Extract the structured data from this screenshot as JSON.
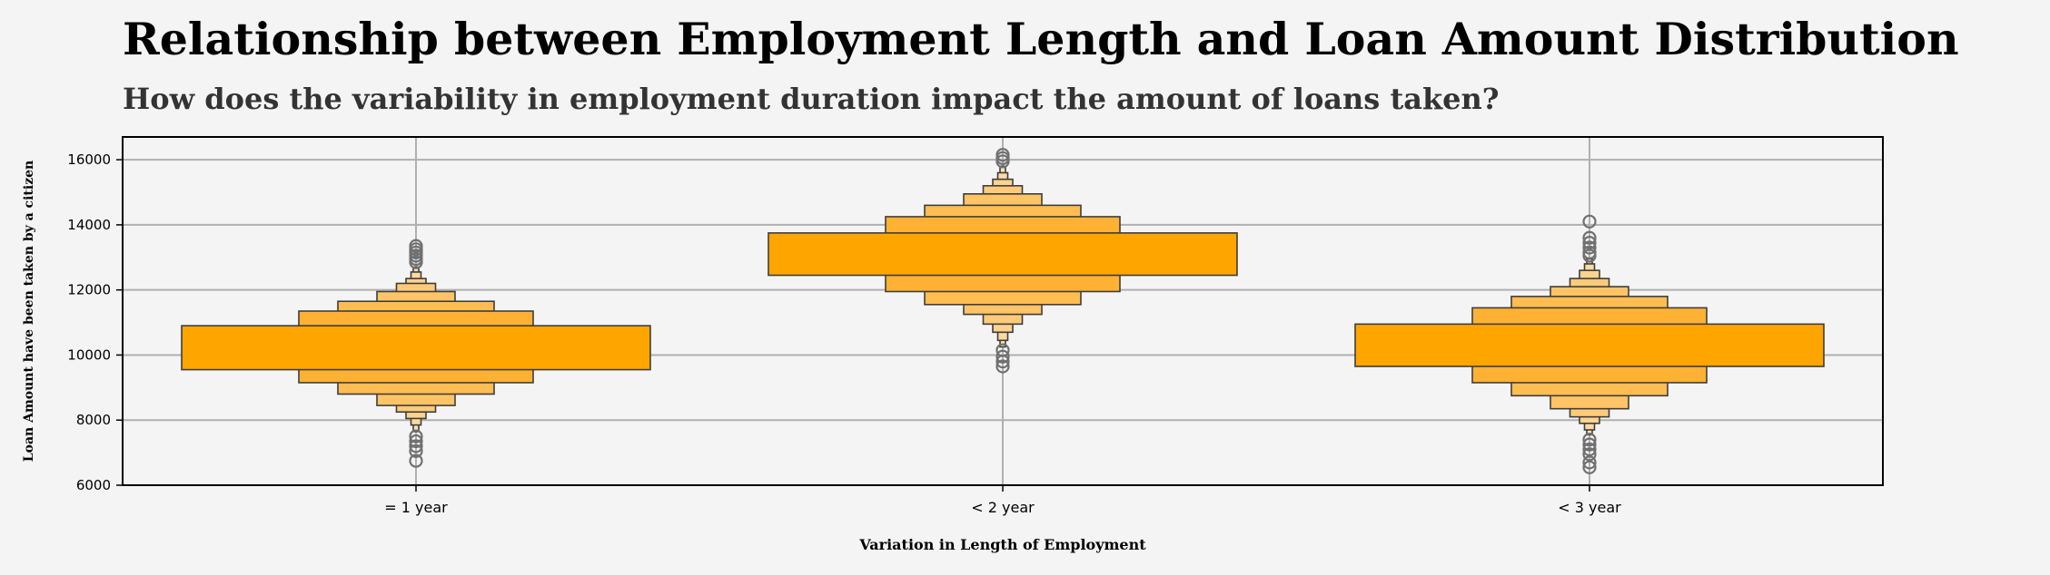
{
  "chart_data": {
    "type": "boxen",
    "title": "Relationship between Employment Length and Loan Amount Distribution",
    "subtitle": "How does the variability in employment duration impact the amount of loans taken?",
    "xlabel": "Variation in Length of Employment",
    "ylabel": "Loan Amount have been taken by a citizen",
    "categories": [
      "= 1 year",
      "< 2 year",
      "< 3 year"
    ],
    "ylim": [
      6000,
      16700
    ],
    "yticks": [
      6000,
      8000,
      10000,
      12000,
      14000,
      16000
    ],
    "grid": true,
    "color": "#ffa500",
    "series": [
      {
        "category": "= 1 year",
        "boxes": [
          {
            "low": 9550,
            "high": 10900
          },
          {
            "low": 9150,
            "high": 11350
          },
          {
            "low": 8800,
            "high": 11650
          },
          {
            "low": 8450,
            "high": 11950
          },
          {
            "low": 8250,
            "high": 12200
          },
          {
            "low": 8050,
            "high": 12350
          },
          {
            "low": 7850,
            "high": 12550
          },
          {
            "low": 7650,
            "high": 12700
          }
        ],
        "outliers": [
          7500,
          7350,
          7200,
          7050,
          6750,
          12850,
          12950,
          13050,
          13150,
          13250,
          13350
        ]
      },
      {
        "category": "< 2 year",
        "boxes": [
          {
            "low": 12450,
            "high": 13750
          },
          {
            "low": 11950,
            "high": 14250
          },
          {
            "low": 11550,
            "high": 14600
          },
          {
            "low": 11250,
            "high": 14950
          },
          {
            "low": 10950,
            "high": 15200
          },
          {
            "low": 10700,
            "high": 15400
          },
          {
            "low": 10450,
            "high": 15600
          },
          {
            "low": 10250,
            "high": 15800
          }
        ],
        "outliers": [
          10150,
          9950,
          9800,
          9650,
          15950,
          16050,
          16150
        ]
      },
      {
        "category": "< 3 year",
        "boxes": [
          {
            "low": 9650,
            "high": 10950
          },
          {
            "low": 9150,
            "high": 11450
          },
          {
            "low": 8750,
            "high": 11800
          },
          {
            "low": 8350,
            "high": 12100
          },
          {
            "low": 8100,
            "high": 12350
          },
          {
            "low": 7900,
            "high": 12600
          },
          {
            "low": 7700,
            "high": 12800
          },
          {
            "low": 7550,
            "high": 12950
          }
        ],
        "outliers": [
          7400,
          7250,
          7100,
          6950,
          6700,
          6550,
          13050,
          13150,
          13300,
          13450,
          13600,
          14100
        ]
      }
    ]
  }
}
